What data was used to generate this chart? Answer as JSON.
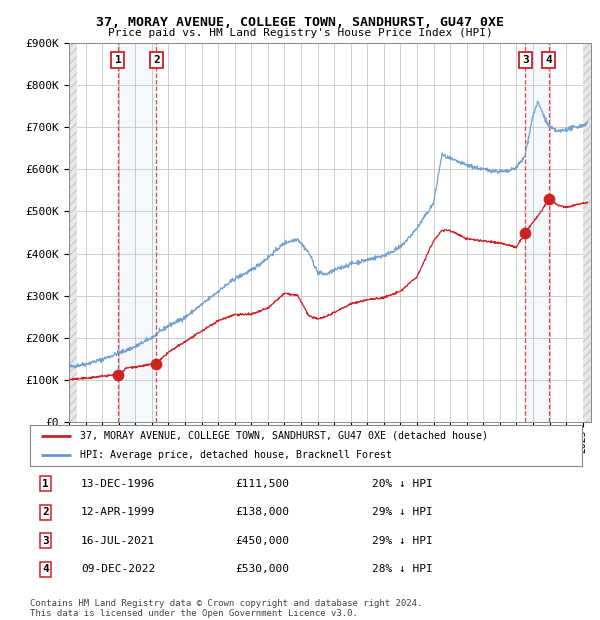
{
  "title_line1": "37, MORAY AVENUE, COLLEGE TOWN, SANDHURST, GU47 0XE",
  "title_line2": "Price paid vs. HM Land Registry's House Price Index (HPI)",
  "ylim": [
    0,
    900000
  ],
  "ytick_values": [
    0,
    100000,
    200000,
    300000,
    400000,
    500000,
    600000,
    700000,
    800000,
    900000
  ],
  "ytick_labels": [
    "£0",
    "£100K",
    "£200K",
    "£300K",
    "£400K",
    "£500K",
    "£600K",
    "£700K",
    "£800K",
    "£900K"
  ],
  "xlim_start": 1994.0,
  "xlim_end": 2025.5,
  "hpi_color": "#6699cc",
  "price_color": "#cc2222",
  "background_color": "#ffffff",
  "grid_color": "#bbbbbb",
  "sale_events": [
    {
      "label": "1",
      "date_num": 1996.95,
      "price": 111500
    },
    {
      "label": "2",
      "date_num": 1999.28,
      "price": 138000
    },
    {
      "label": "3",
      "date_num": 2021.54,
      "price": 450000
    },
    {
      "label": "4",
      "date_num": 2022.94,
      "price": 530000
    }
  ],
  "legend_line1": "37, MORAY AVENUE, COLLEGE TOWN, SANDHURST, GU47 0XE (detached house)",
  "legend_line2": "HPI: Average price, detached house, Bracknell Forest",
  "table_rows": [
    {
      "num": "1",
      "date": "13-DEC-1996",
      "price": "£111,500",
      "hpi": "20% ↓ HPI"
    },
    {
      "num": "2",
      "date": "12-APR-1999",
      "price": "£138,000",
      "hpi": "29% ↓ HPI"
    },
    {
      "num": "3",
      "date": "16-JUL-2021",
      "price": "£450,000",
      "hpi": "29% ↓ HPI"
    },
    {
      "num": "4",
      "date": "09-DEC-2022",
      "price": "£530,000",
      "hpi": "28% ↓ HPI"
    }
  ],
  "footer": "Contains HM Land Registry data © Crown copyright and database right 2024.\nThis data is licensed under the Open Government Licence v3.0.",
  "hpi_anchors_x": [
    1994.0,
    1995.0,
    1996.0,
    1997.0,
    1998.0,
    1999.0,
    2000.0,
    2001.0,
    2002.0,
    2003.0,
    2004.0,
    2005.0,
    2006.0,
    2007.0,
    2007.8,
    2008.5,
    2009.0,
    2009.5,
    2010.0,
    2011.0,
    2012.0,
    2013.0,
    2014.0,
    2015.0,
    2016.0,
    2016.5,
    2017.0,
    2018.0,
    2019.0,
    2020.0,
    2020.5,
    2021.0,
    2021.5,
    2022.0,
    2022.3,
    2022.8,
    2023.0,
    2023.5,
    2024.0,
    2025.0,
    2025.3
  ],
  "hpi_anchors_y": [
    130000,
    137000,
    148000,
    163000,
    178000,
    200000,
    228000,
    248000,
    278000,
    310000,
    340000,
    360000,
    390000,
    425000,
    435000,
    400000,
    355000,
    350000,
    360000,
    375000,
    385000,
    395000,
    415000,
    460000,
    520000,
    635000,
    625000,
    610000,
    600000,
    595000,
    595000,
    605000,
    630000,
    730000,
    760000,
    715000,
    700000,
    690000,
    695000,
    705000,
    710000
  ],
  "price_anchors_x": [
    1994.0,
    1995.0,
    1996.0,
    1996.95,
    1997.5,
    1998.5,
    1999.28,
    2000.0,
    2001.0,
    2002.0,
    2003.0,
    2004.0,
    2005.0,
    2006.0,
    2007.0,
    2007.8,
    2008.5,
    2009.0,
    2009.5,
    2010.0,
    2011.0,
    2012.0,
    2013.0,
    2014.0,
    2015.0,
    2016.0,
    2016.5,
    2017.0,
    2018.0,
    2019.0,
    2020.0,
    2020.5,
    2021.0,
    2021.54,
    2022.0,
    2022.5,
    2022.94,
    2023.5,
    2024.0,
    2025.0,
    2025.3
  ],
  "price_anchors_y": [
    100000,
    103000,
    108000,
    111500,
    128000,
    133000,
    138000,
    165000,
    190000,
    215000,
    240000,
    255000,
    255000,
    270000,
    305000,
    300000,
    250000,
    245000,
    250000,
    260000,
    280000,
    290000,
    295000,
    310000,
    345000,
    430000,
    455000,
    455000,
    435000,
    430000,
    425000,
    420000,
    415000,
    450000,
    475000,
    500000,
    530000,
    515000,
    510000,
    520000,
    522000
  ]
}
